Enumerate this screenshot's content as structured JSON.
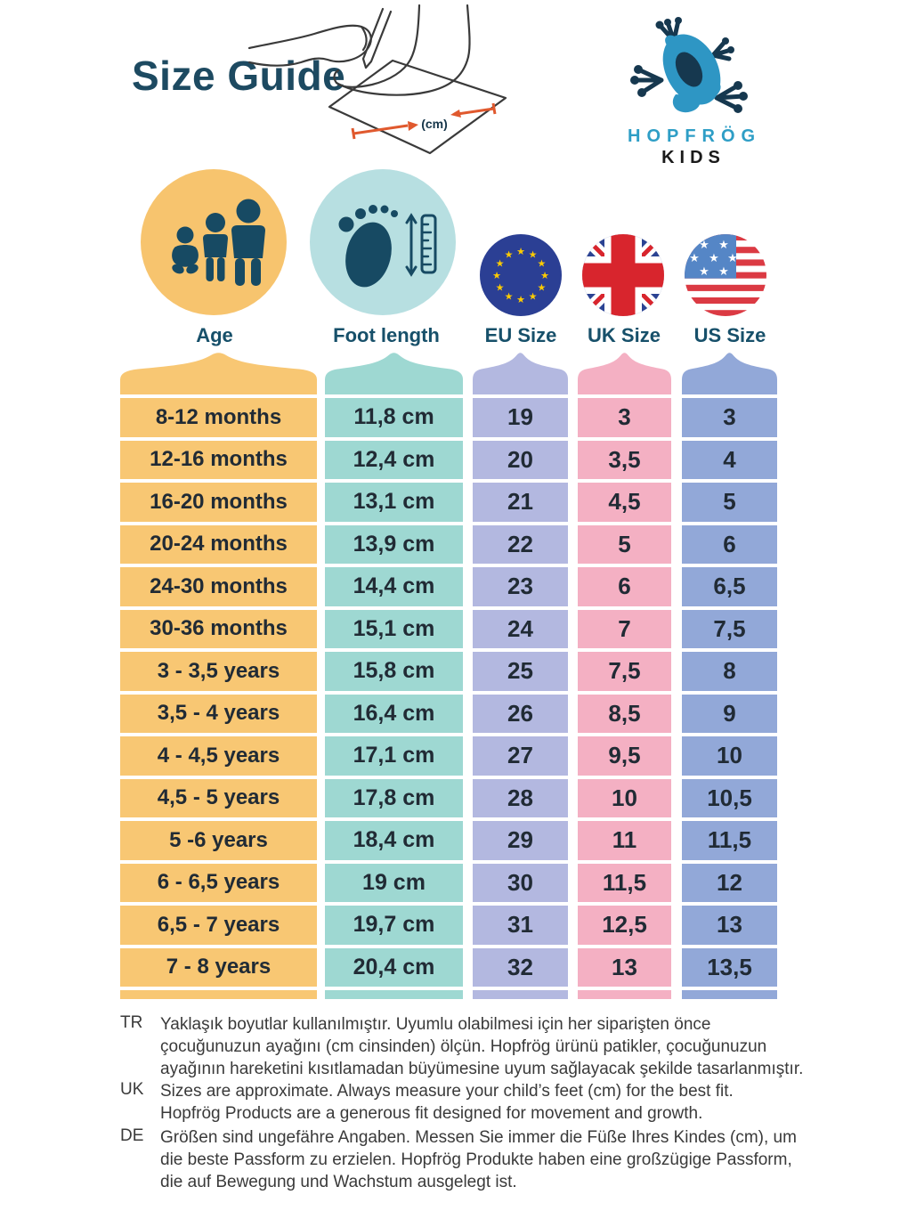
{
  "page": {
    "title": "Size Guide"
  },
  "logo": {
    "brand": "HOPFRÖG",
    "sub": "KIDS"
  },
  "illustration": {
    "cm_label": "(cm)"
  },
  "icons": {
    "age_circle_color": "#F7C46E",
    "foot_circle_color": "#B7DFE1",
    "figure_navy": "#174A63",
    "eu_blue": "#2B3F94",
    "star_gold": "#FFCC00",
    "uk_blue": "#2B4393",
    "uk_red": "#D8252D",
    "us_canton": "#5586C6",
    "us_red": "#DB3A43",
    "frog_blue": "#2E96C4",
    "frog_navy": "#16384F",
    "arrow_orange": "#E0592E",
    "line_dark": "#3A3A3A"
  },
  "columns": [
    {
      "key": "age",
      "label": "Age",
      "color": "#F8C773"
    },
    {
      "key": "foot",
      "label": "Foot length",
      "color": "#9ED8D2"
    },
    {
      "key": "eu",
      "label": "EU Size",
      "color": "#B3B8E0"
    },
    {
      "key": "uk",
      "label": "UK Size",
      "color": "#F4B0C3"
    },
    {
      "key": "us",
      "label": "US Size",
      "color": "#92A8D8"
    }
  ],
  "table": {
    "rows": [
      {
        "age": "8-12 months",
        "foot": "11,8 cm",
        "eu": "19",
        "uk": "3",
        "us": "3"
      },
      {
        "age": "12-16 months",
        "foot": "12,4 cm",
        "eu": "20",
        "uk": "3,5",
        "us": "4"
      },
      {
        "age": "16-20 months",
        "foot": "13,1 cm",
        "eu": "21",
        "uk": "4,5",
        "us": "5"
      },
      {
        "age": "20-24 months",
        "foot": "13,9 cm",
        "eu": "22",
        "uk": "5",
        "us": "6"
      },
      {
        "age": "24-30 months",
        "foot": "14,4 cm",
        "eu": "23",
        "uk": "6",
        "us": "6,5"
      },
      {
        "age": "30-36 months",
        "foot": "15,1 cm",
        "eu": "24",
        "uk": "7",
        "us": "7,5"
      },
      {
        "age": "3 - 3,5 years",
        "foot": "15,8 cm",
        "eu": "25",
        "uk": "7,5",
        "us": "8"
      },
      {
        "age": "3,5 - 4 years",
        "foot": "16,4 cm",
        "eu": "26",
        "uk": "8,5",
        "us": "9"
      },
      {
        "age": "4 - 4,5 years",
        "foot": "17,1 cm",
        "eu": "27",
        "uk": "9,5",
        "us": "10"
      },
      {
        "age": "4,5 - 5 years",
        "foot": "17,8 cm",
        "eu": "28",
        "uk": "10",
        "us": "10,5"
      },
      {
        "age": "5 -6 years",
        "foot": "18,4 cm",
        "eu": "29",
        "uk": "11",
        "us": "11,5"
      },
      {
        "age": "6 - 6,5 years",
        "foot": "19 cm",
        "eu": "30",
        "uk": "11,5",
        "us": "12"
      },
      {
        "age": "6,5 - 7 years",
        "foot": "19,7 cm",
        "eu": "31",
        "uk": "12,5",
        "us": "13"
      },
      {
        "age": "7 - 8 years",
        "foot": "20,4 cm",
        "eu": "32",
        "uk": "13",
        "us": "13,5"
      }
    ]
  },
  "footer": {
    "items": [
      {
        "label": "TR",
        "text": "Yaklaşık boyutlar kullanılmıştır. Uyumlu olabilmesi için her siparişten önce\nçocuğunuzun ayağını (cm cinsinden) ölçün. Hopfrög ürünü patikler, çocuğunuzun\nayağının hareketini kısıtlamadan büyümesine uyum sağlayacak şekilde tasarlanmıştır."
      },
      {
        "label": "UK",
        "text": "Sizes are approximate. Always measure your child’s feet (cm) for the best fit.\nHopfrög Products are a generous fit designed for movement and growth."
      },
      {
        "label": "DE",
        "text": "Größen sind ungefähre Angaben. Messen Sie immer die Füße Ihres Kindes (cm), um\ndie beste Passform zu erzielen. Hopfrög Produkte haben eine großzügige Passform,\ndie auf Bewegung und Wachstum ausgelegt ist."
      }
    ]
  }
}
